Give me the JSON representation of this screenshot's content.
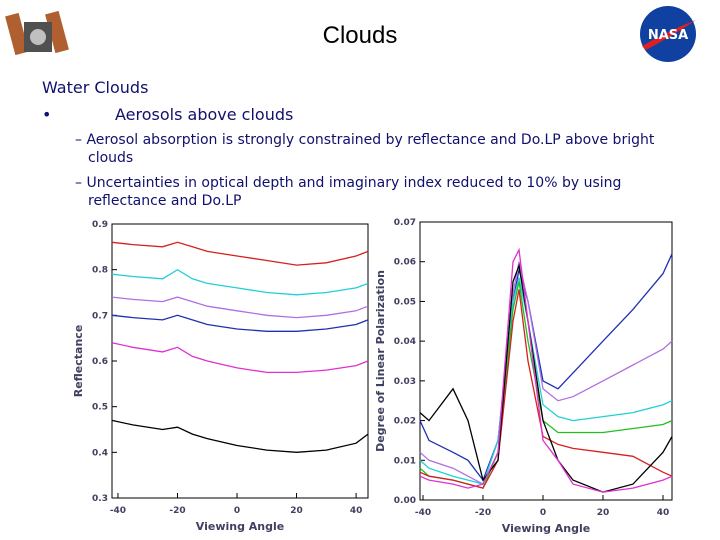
{
  "header": {
    "title": "Clouds",
    "logo": "NASA"
  },
  "body": {
    "heading": "Water Clouds",
    "bullet": "•",
    "point": "Aerosols above clouds",
    "subpoints": [
      "– Aerosol absorption is strongly constrained by reflectance and Do.LP above bright clouds",
      "– Uncertainties in optical depth and imaginary index reduced to 10% by using reflectance and Do.LP"
    ]
  },
  "chart_data": [
    {
      "type": "line",
      "xlabel": "Viewing Angle",
      "ylabel": "Reflectance",
      "xlim": [
        -42,
        44
      ],
      "xticks": [
        -40,
        -20,
        0,
        20,
        40
      ],
      "ylim": [
        0.3,
        0.9
      ],
      "yticks": [
        0.3,
        0.4,
        0.5,
        0.6,
        0.7,
        0.8,
        0.9
      ],
      "x": [
        -42,
        -35,
        -25,
        -20,
        -15,
        -10,
        0,
        10,
        20,
        30,
        40,
        44
      ],
      "series": [
        {
          "color": "#d62020",
          "values": [
            0.86,
            0.855,
            0.85,
            0.86,
            0.85,
            0.84,
            0.83,
            0.82,
            0.81,
            0.815,
            0.83,
            0.84
          ]
        },
        {
          "color": "#20d0d8",
          "values": [
            0.79,
            0.785,
            0.78,
            0.8,
            0.78,
            0.77,
            0.76,
            0.75,
            0.745,
            0.75,
            0.76,
            0.77
          ]
        },
        {
          "color": "#b070e0",
          "values": [
            0.74,
            0.735,
            0.73,
            0.74,
            0.73,
            0.72,
            0.71,
            0.7,
            0.695,
            0.7,
            0.71,
            0.72
          ]
        },
        {
          "color": "#2030b0",
          "values": [
            0.7,
            0.695,
            0.69,
            0.7,
            0.69,
            0.68,
            0.67,
            0.665,
            0.665,
            0.67,
            0.68,
            0.69
          ]
        },
        {
          "color": "#e030d0",
          "values": [
            0.64,
            0.63,
            0.62,
            0.63,
            0.61,
            0.6,
            0.585,
            0.575,
            0.575,
            0.58,
            0.59,
            0.6
          ]
        },
        {
          "color": "#000000",
          "values": [
            0.47,
            0.46,
            0.45,
            0.455,
            0.44,
            0.43,
            0.415,
            0.405,
            0.4,
            0.405,
            0.42,
            0.44
          ]
        }
      ]
    },
    {
      "type": "line",
      "xlabel": "Viewing Angle",
      "ylabel": "Degree of Linear Polarization",
      "xlim": [
        -41,
        43
      ],
      "xticks": [
        -40,
        -20,
        0,
        20,
        40
      ],
      "ylim": [
        0,
        0.07
      ],
      "yticks": [
        {
          "value": 0,
          "label": "0.00"
        },
        {
          "value": 0.01,
          "label": "0.01"
        },
        {
          "value": 0.02,
          "label": "0.02"
        },
        {
          "value": 0.03,
          "label": "0.03"
        },
        {
          "value": 0.04,
          "label": "0.04"
        },
        {
          "value": 0.05,
          "label": "0.05"
        },
        {
          "value": 0.06,
          "label": "0.06"
        },
        {
          "value": 0.07,
          "label": "0.07"
        }
      ],
      "x": [
        -41,
        -38,
        -30,
        -25,
        -20,
        -15,
        -10,
        -8,
        -5,
        0,
        5,
        10,
        20,
        30,
        40,
        43
      ],
      "series": [
        {
          "color": "#2030b0",
          "values": [
            0.02,
            0.015,
            0.012,
            0.01,
            0.005,
            0.015,
            0.05,
            0.058,
            0.05,
            0.03,
            0.028,
            0.032,
            0.04,
            0.048,
            0.057,
            0.062
          ]
        },
        {
          "color": "#b070e0",
          "values": [
            0.012,
            0.01,
            0.008,
            0.006,
            0.004,
            0.015,
            0.052,
            0.06,
            0.05,
            0.028,
            0.025,
            0.026,
            0.03,
            0.034,
            0.038,
            0.04
          ]
        },
        {
          "color": "#20d0d8",
          "values": [
            0.01,
            0.008,
            0.006,
            0.005,
            0.004,
            0.015,
            0.05,
            0.056,
            0.045,
            0.024,
            0.021,
            0.02,
            0.021,
            0.022,
            0.024,
            0.025
          ]
        },
        {
          "color": "#20c020",
          "values": [
            0.008,
            0.006,
            0.005,
            0.004,
            0.003,
            0.012,
            0.048,
            0.055,
            0.04,
            0.02,
            0.017,
            0.017,
            0.017,
            0.018,
            0.019,
            0.02
          ]
        },
        {
          "color": "#d62020",
          "values": [
            0.007,
            0.006,
            0.005,
            0.004,
            0.003,
            0.01,
            0.045,
            0.053,
            0.035,
            0.016,
            0.014,
            0.013,
            0.012,
            0.011,
            0.007,
            0.006
          ]
        },
        {
          "color": "#000000",
          "values": [
            0.022,
            0.02,
            0.028,
            0.02,
            0.005,
            0.01,
            0.055,
            0.059,
            0.045,
            0.02,
            0.01,
            0.005,
            0.002,
            0.004,
            0.012,
            0.016
          ]
        },
        {
          "color": "#e030d0",
          "values": [
            0.006,
            0.005,
            0.004,
            0.003,
            0.004,
            0.012,
            0.06,
            0.063,
            0.045,
            0.015,
            0.01,
            0.004,
            0.002,
            0.003,
            0.005,
            0.006
          ]
        }
      ]
    }
  ]
}
